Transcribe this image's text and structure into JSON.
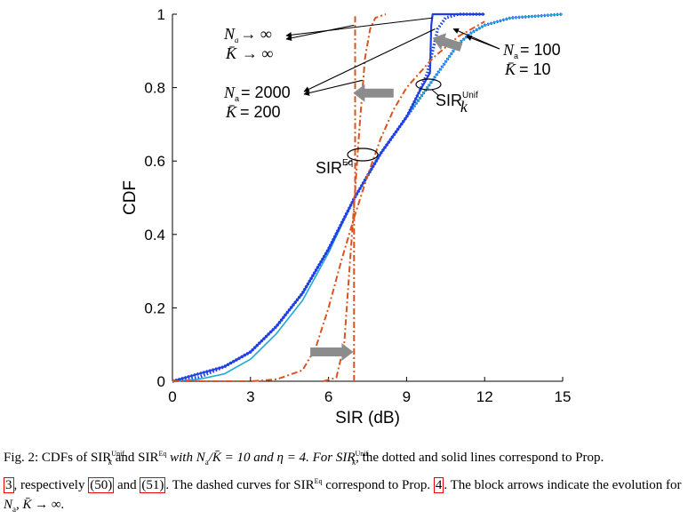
{
  "chart_data": {
    "type": "line",
    "xlabel": "SIR (dB)",
    "ylabel": "CDF",
    "xlim": [
      0,
      15
    ],
    "ylim": [
      0,
      1
    ],
    "xticks": [
      0,
      3,
      6,
      9,
      12,
      15
    ],
    "yticks": [
      0,
      0.2,
      0.4,
      0.6,
      0.8,
      1
    ],
    "grid": false,
    "colors": {
      "unif": "#1f3fe6",
      "unif_solid": "#1fa8d8",
      "eq": "#d9541e",
      "arrow": "#8c8c8c"
    },
    "series": [
      {
        "group": "unif",
        "style": "dotted",
        "case": "Na=100, K=10",
        "x": [
          0,
          1,
          2,
          3,
          4,
          5,
          6,
          7,
          8,
          9,
          9.5,
          10,
          10.5,
          11,
          11.5,
          12,
          13,
          14,
          15
        ],
        "y": [
          0,
          0.01,
          0.04,
          0.08,
          0.15,
          0.24,
          0.36,
          0.5,
          0.62,
          0.72,
          0.77,
          0.82,
          0.87,
          0.92,
          0.95,
          0.97,
          0.99,
          0.995,
          1
        ]
      },
      {
        "group": "unif",
        "style": "solid",
        "case": "Na=100, K=10",
        "x": [
          0,
          1,
          2,
          3,
          4,
          5,
          6,
          7,
          8,
          9,
          9.5,
          10,
          10.5,
          11,
          11.5,
          12,
          13,
          14,
          15
        ],
        "y": [
          0,
          0.005,
          0.02,
          0.06,
          0.13,
          0.22,
          0.35,
          0.5,
          0.62,
          0.72,
          0.77,
          0.82,
          0.87,
          0.92,
          0.95,
          0.97,
          0.99,
          0.995,
          1
        ]
      },
      {
        "group": "unif",
        "style": "dotted",
        "case": "Na=2000, K=200",
        "x": [
          0,
          2,
          3,
          4,
          5,
          6,
          7,
          8,
          9,
          9.5,
          9.8,
          10,
          10.2,
          10.5,
          11,
          12
        ],
        "y": [
          0,
          0.04,
          0.08,
          0.15,
          0.24,
          0.36,
          0.5,
          0.62,
          0.72,
          0.79,
          0.84,
          0.9,
          0.96,
          0.99,
          1,
          1
        ]
      },
      {
        "group": "unif",
        "style": "solid",
        "case": "Na, K to infinity",
        "x": [
          0,
          2,
          3,
          4,
          5,
          6,
          7,
          8,
          9,
          9.5,
          9.9,
          9.95,
          10,
          10.5,
          12
        ],
        "y": [
          0,
          0.04,
          0.08,
          0.15,
          0.24,
          0.36,
          0.5,
          0.62,
          0.72,
          0.79,
          0.84,
          0.97,
          1,
          1,
          1
        ]
      },
      {
        "group": "eq",
        "style": "dashed",
        "case": "Na=100, K=10",
        "x": [
          0,
          3,
          4,
          5,
          5.5,
          6,
          6.5,
          7,
          7.5,
          8,
          8.5,
          9,
          10,
          11,
          12
        ],
        "y": [
          0,
          0,
          0.005,
          0.03,
          0.09,
          0.2,
          0.33,
          0.45,
          0.56,
          0.66,
          0.74,
          0.8,
          0.88,
          0.94,
          0.98
        ]
      },
      {
        "group": "eq",
        "style": "dashed",
        "case": "Na=2000, K=200",
        "x": [
          5.8,
          6.3,
          6.6,
          6.8,
          7,
          7.2,
          7.4,
          7.6,
          7.8,
          8.2
        ],
        "y": [
          0,
          0.01,
          0.1,
          0.3,
          0.5,
          0.7,
          0.88,
          0.96,
          0.99,
          1
        ]
      },
      {
        "group": "eq",
        "style": "dashed",
        "case": "Na, K to infinity",
        "x": [
          6.98,
          6.98,
          7.02,
          7.02
        ],
        "y": [
          0,
          0.5,
          0.5,
          1
        ]
      }
    ],
    "annotations": {
      "inf_na": "N",
      "inf_na_sub": "a",
      "inf_arrow": "→ ∞",
      "inf_k": "K̄",
      "na2000": "N",
      "na2000_sub": "a",
      "na2000_val": "= 2000",
      "k200_k": "K̄",
      "k200_val": "= 200",
      "na100": "N",
      "na100_sub": "a",
      "na100_val": "= 100",
      "k10_k": "K̄",
      "k10_val": "= 10",
      "sir_unif": "SIR",
      "sir_unif_sup": "Unif",
      "sir_unif_sub": "k",
      "sir_eq": "SIR",
      "sir_eq_sup": "Eq"
    }
  },
  "caption": {
    "line1_a": "Fig. 2: CDFs of SIR",
    "line1_b": "Unif",
    "line1_c": "k",
    "line1_d": " and SIR",
    "line1_e": "Eq",
    "line1_f": " with N",
    "line1_g": "a",
    "line1_h": "/K̄ = 10 and η = 4. For SIR",
    "line1_i": "Unif",
    "line1_j": "k",
    "line1_k": ", the dotted and solid lines correspond to Prop.",
    "ref3": "3",
    "line2_a": ", respectively ",
    "ref50": "(50)",
    "line2_b": " and ",
    "ref51": "(51)",
    "line2_c": ". The dashed curves for SIR",
    "line2_d": "Eq",
    "line2_e": " correspond to Prop. ",
    "ref4": "4",
    "line2_f": ". The block arrows indicate the evolution for",
    "line3": "N",
    "line3_sub": "a",
    "line3_b": ", K̄ → ∞."
  }
}
